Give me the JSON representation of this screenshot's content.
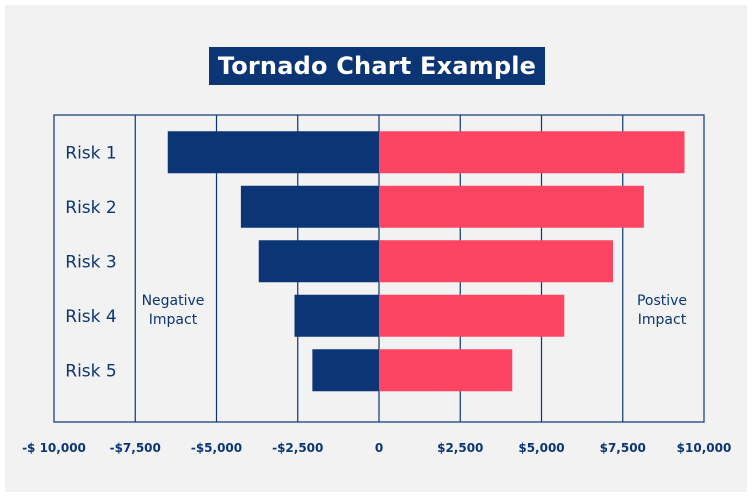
{
  "chart_data": {
    "type": "bar",
    "title": "Tornado Chart Example",
    "categories": [
      "Risk 1",
      "Risk 2",
      "Risk 3",
      "Risk 4",
      "Risk 5"
    ],
    "series": [
      {
        "name": "Negative Impact",
        "values": [
          -6500,
          -4250,
          -3700,
          -2600,
          -2050
        ]
      },
      {
        "name": "Postive Impact",
        "values": [
          9400,
          8150,
          7200,
          5700,
          4100
        ]
      }
    ],
    "xlim": [
      -10000,
      10000
    ],
    "xticks": [
      -10000,
      -7500,
      -5000,
      -2500,
      0,
      2500,
      5000,
      7500,
      10000
    ],
    "xtick_labels": [
      "-$ 10,000",
      "-$7,500",
      "-$5,000",
      "-$2,500",
      "0",
      "$2,500",
      "$5,000",
      "$7,500",
      "$10,000"
    ],
    "side_labels": {
      "left": [
        "Negative",
        "Impact"
      ],
      "right": [
        "Postive",
        "Impact"
      ]
    },
    "grid": true,
    "colors": {
      "negative": "#0b3575",
      "positive": "#fd4563",
      "grid": "#0b3575"
    }
  }
}
